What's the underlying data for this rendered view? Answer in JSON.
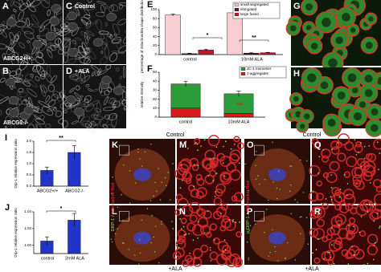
{
  "figure": {
    "micro": [
      {
        "letter": "A",
        "caption": "ABCG2+/+"
      },
      {
        "letter": "C",
        "caption": "Control"
      },
      {
        "letter": "B",
        "caption": "ABCG2-/-"
      },
      {
        "letter": "D",
        "caption": "+ALA"
      },
      {
        "letter": "G"
      },
      {
        "letter": "H"
      },
      {
        "letter": "K"
      },
      {
        "letter": "M"
      },
      {
        "letter": "O"
      },
      {
        "letter": "Q"
      },
      {
        "letter": "L"
      },
      {
        "letter": "N"
      },
      {
        "letter": "P"
      },
      {
        "letter": "R"
      }
    ],
    "group_headers": [
      "Control",
      "Control",
      "+ALA",
      "+ALA"
    ],
    "stain_labels": [
      [
        "DRP-1",
        "/",
        "Mitotracker Red"
      ],
      [
        "p-DRP-1",
        "/",
        "Mitotracker Red"
      ]
    ]
  },
  "chart_data": [
    {
      "type": "bar",
      "letter": "E",
      "y_label": "percentage of mitochondria shape distribution (%)",
      "categories": [
        "control",
        "10mM ALA"
      ],
      "series": [
        {
          "name": "small segregated",
          "color": "#f8cdd4",
          "values": [
            88,
            93
          ],
          "errors": [
            2,
            3
          ]
        },
        {
          "name": "elongated",
          "color": "#6e0f1c",
          "values": [
            2,
            3
          ],
          "errors": [
            1,
            1
          ]
        },
        {
          "name": "large fused",
          "color": "#c4142c",
          "values": [
            10,
            4
          ],
          "errors": [
            2,
            1
          ]
        }
      ],
      "ylim": [
        0,
        100
      ],
      "yticks": [
        0,
        20,
        40,
        60,
        80,
        100
      ],
      "annotations": [
        "*",
        "**"
      ]
    },
    {
      "type": "stacked_bar",
      "letter": "F",
      "y_label": "relative intensity",
      "categories": [
        "control",
        "10mM ALA"
      ],
      "series": [
        {
          "name": "J-aggregates",
          "color": "#d41a1a",
          "values": [
            10,
            4
          ]
        },
        {
          "name": "JC-1 monomer",
          "color": "#2c9b3a",
          "values": [
            27,
            22
          ],
          "errors": [
            3,
            3
          ]
        }
      ],
      "ylim": [
        0,
        50
      ],
      "yticks": [
        0,
        10,
        20,
        30,
        40,
        50
      ],
      "annotations": [
        "***"
      ]
    },
    {
      "type": "bar",
      "letter": "I",
      "y_label": "Drp-1 relative expression ratio",
      "categories": [
        "ABCG2+/+",
        "ABCG2-/-"
      ],
      "series": [
        {
          "color": "#2233cc",
          "values": [
            0.7,
            1.5
          ],
          "errors": [
            0.15,
            0.3
          ]
        }
      ],
      "ylim": [
        0,
        2
      ],
      "yticks": [
        {
          "value": 0,
          "label": "0.0"
        },
        0.5,
        {
          "value": 1,
          "label": "1.0"
        },
        1.5,
        {
          "value": 2,
          "label": "2.0"
        }
      ],
      "annotations": [
        "**"
      ]
    },
    {
      "type": "bar",
      "letter": "J",
      "y_label": "Drp-1 relative expression ratio",
      "categories": [
        "control",
        "2mM ALA"
      ],
      "series": [
        {
          "color": "#2233cc",
          "values": [
            1.005,
            1.03
          ],
          "errors": [
            0.005,
            0.008
          ]
        }
      ],
      "ylim": [
        0.99,
        1.04
      ],
      "yticks": [
        {
          "value": 1,
          "label": "1.00"
        },
        1.02,
        1.04
      ],
      "annotations": [
        "*"
      ]
    }
  ]
}
